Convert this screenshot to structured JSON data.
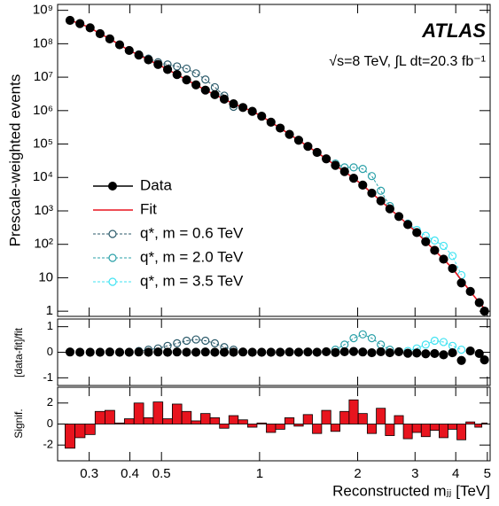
{
  "chart_data": [
    {
      "type": "scatter",
      "ylabel": "Prescale-weighted events",
      "xlabel": "Reconstructed mⱼⱼ [TeV]",
      "annotations": [
        "ATLAS",
        "√s=8 TeV, ∫L dt=20.3 fb⁻¹"
      ],
      "log_x": true,
      "log_y": true,
      "xlim": [
        0.24,
        5.1
      ],
      "ylim": [
        0.7,
        1500000000
      ],
      "xticks": [
        0.3,
        0.4,
        0.5,
        1,
        2,
        3,
        4,
        5
      ],
      "yticks": [
        1,
        10,
        {
          "value": 100,
          "label": "10²"
        },
        {
          "value": 1000,
          "label": "10³"
        },
        {
          "value": 10000,
          "label": "10⁴"
        },
        {
          "value": 100000,
          "label": "10⁵"
        },
        {
          "value": 1000000,
          "label": "10⁶"
        },
        {
          "value": 10000000,
          "label": "10⁷"
        },
        {
          "value": 100000000,
          "label": "10⁸"
        },
        {
          "value": 1000000000,
          "label": "10⁹"
        }
      ],
      "x": [
        0.262,
        0.281,
        0.302,
        0.324,
        0.347,
        0.372,
        0.398,
        0.426,
        0.456,
        0.488,
        0.522,
        0.558,
        0.597,
        0.638,
        0.682,
        0.729,
        0.779,
        0.832,
        0.889,
        0.95,
        1.015,
        1.084,
        1.157,
        1.235,
        1.318,
        1.407,
        1.501,
        1.602,
        1.709,
        1.823,
        1.944,
        2.073,
        2.21,
        2.356,
        2.511,
        2.676,
        2.851,
        3.037,
        3.235,
        3.446,
        3.67,
        3.909,
        4.163,
        4.434,
        4.723,
        4.9
      ],
      "series": [
        {
          "name": "Data",
          "color": "#000000",
          "style": "points",
          "values": [
            500000000,
            400000000,
            300000000,
            200000000,
            140000000,
            93000000,
            63000000,
            46000000,
            33000000,
            24000000,
            17000000,
            12000000,
            8300000,
            5900000,
            4100000,
            3000000,
            2200000,
            1600000,
            1240000,
            950000,
            680000,
            450000,
            300000,
            195000,
            130000,
            85000,
            56000,
            36000,
            23000,
            15000,
            9500,
            5900,
            3400,
            2000,
            1150,
            680,
            390,
            225,
            120,
            66,
            36,
            19,
            7,
            3.9,
            1.8,
            1
          ]
        },
        {
          "name": "Fit",
          "color": "#e8141e",
          "style": "line",
          "values": [
            500000000,
            400000000,
            300000000,
            200000000,
            140000000,
            93000000,
            63000000,
            46000000,
            33000000,
            24000000,
            17000000,
            12000000,
            8300000,
            5900000,
            4100000,
            3000000,
            2200000,
            1600000,
            1240000,
            950000,
            680000,
            450000,
            300000,
            195000,
            130000,
            85000,
            56000,
            36000,
            23000,
            15000,
            9500,
            5900,
            3400,
            2000,
            1150,
            680,
            390,
            225,
            120,
            66,
            36,
            19,
            8.5,
            3.9,
            1.8,
            1.2
          ]
        },
        {
          "name": "q*, m = 0.6 TeV",
          "color": "#2b5a6a",
          "style": "open",
          "x": [
            0.426,
            0.456,
            0.488,
            0.522,
            0.558,
            0.597,
            0.638,
            0.682,
            0.729,
            0.779,
            0.832
          ],
          "values": [
            48000000,
            36000000,
            28000000,
            24000000,
            21000000,
            18000000,
            13000000,
            8500000,
            5000000,
            2800000,
            1300000
          ]
        },
        {
          "name": "q*, m = 2.0 TeV",
          "color": "#2aa0a8",
          "style": "open",
          "x": [
            1.709,
            1.823,
            1.944,
            2.073,
            2.21,
            2.356,
            2.511
          ],
          "values": [
            26000,
            20000,
            20000,
            18000,
            11000,
            4000,
            1400
          ]
        },
        {
          "name": "q*, m = 3.5 TeV",
          "color": "#3fe3f2",
          "style": "open",
          "x": [
            2.851,
            3.037,
            3.235,
            3.446,
            3.67,
            3.909,
            4.163
          ],
          "values": [
            420,
            270,
            180,
            130,
            90,
            45,
            12
          ]
        }
      ]
    },
    {
      "type": "scatter",
      "ylabel": "[data-fit]/fit",
      "ylim": [
        -1.3,
        1.3
      ],
      "yticks": [
        -1,
        0,
        1
      ],
      "series": [
        {
          "color": "#000000",
          "values": [
            0.01,
            0,
            0,
            0,
            0.01,
            0,
            0,
            0.01,
            0,
            0.01,
            0,
            0.01,
            0,
            0,
            0.01,
            0,
            0,
            0,
            0.01,
            0,
            0,
            0,
            0,
            0.01,
            0,
            0.01,
            0,
            0.02,
            -0.01,
            0.02,
            0.03,
            0.01,
            -0.02,
            0.02,
            -0.02,
            0.02,
            -0.04,
            -0.03,
            -0.06,
            -0.05,
            -0.1,
            -0.02,
            -0.32,
            0.05,
            -0.05,
            -0.3
          ]
        },
        {
          "color": "#2b5a6a",
          "x": [
            0.426,
            0.456,
            0.488,
            0.522,
            0.558,
            0.597,
            0.638,
            0.682,
            0.729,
            0.779,
            0.832
          ],
          "values": [
            0.05,
            0.1,
            0.15,
            0.25,
            0.35,
            0.45,
            0.5,
            0.45,
            0.35,
            0.2,
            0.1
          ]
        },
        {
          "color": "#2aa0a8",
          "x": [
            1.709,
            1.823,
            1.944,
            2.073,
            2.21,
            2.356,
            2.511
          ],
          "values": [
            0.1,
            0.3,
            0.55,
            0.7,
            0.55,
            0.3,
            0.1
          ]
        },
        {
          "color": "#3fe3f2",
          "x": [
            2.851,
            3.037,
            3.235,
            3.446,
            3.67,
            3.909,
            4.163
          ],
          "values": [
            0.05,
            0.15,
            0.3,
            0.45,
            0.4,
            0.25,
            0.1
          ]
        }
      ]
    },
    {
      "type": "bar",
      "ylabel": "Signif.",
      "ylim": [
        -3.5,
        3.5
      ],
      "yticks": [
        -2,
        0,
        2
      ],
      "color": "#e8141e",
      "values": [
        -2.3,
        -1.3,
        -1.0,
        1.2,
        1.3,
        0.1,
        0.5,
        2.0,
        0.6,
        2.1,
        0.5,
        1.9,
        1.2,
        0.3,
        1.0,
        0.6,
        -0.4,
        0.8,
        0.4,
        -0.3,
        0.1,
        -0.8,
        -0.5,
        0.6,
        -0.2,
        0.9,
        -0.9,
        1.3,
        -0.7,
        1.2,
        2.3,
        1.0,
        -0.9,
        1.5,
        -1.1,
        0.8,
        -1.4,
        -0.8,
        -1.2,
        -0.6,
        -1.3,
        -0.5,
        -1.5,
        0.2,
        -0.3,
        0.1
      ]
    }
  ]
}
